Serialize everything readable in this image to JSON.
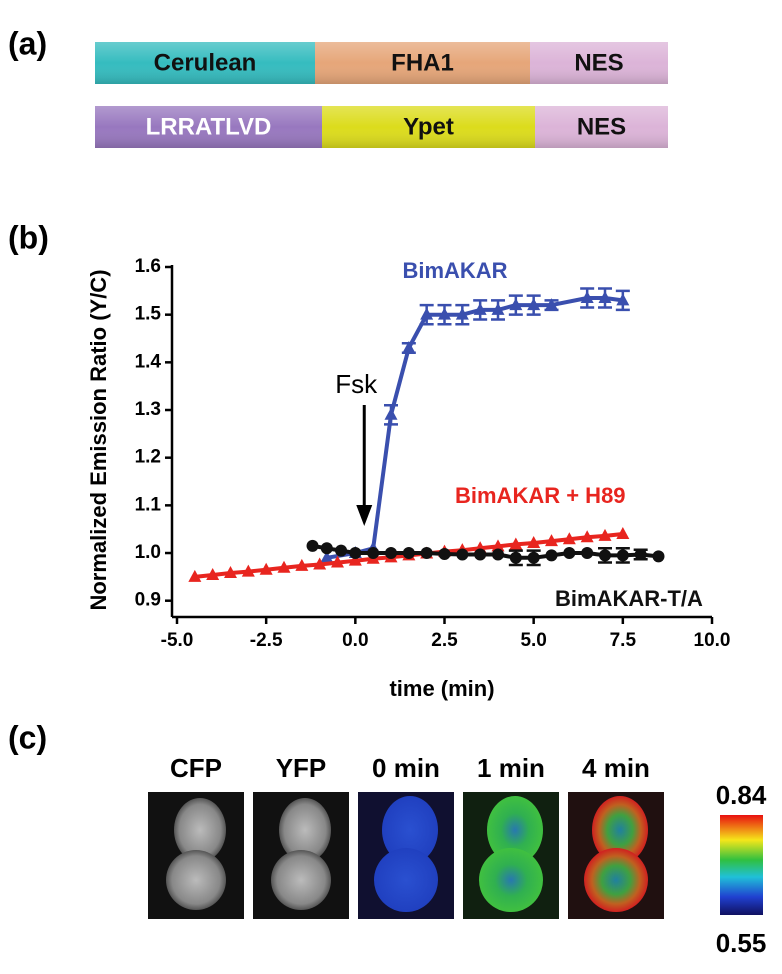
{
  "panel_a": {
    "label": "(a)",
    "rows": [
      [
        {
          "label": "Cerulean",
          "color": "#35bcbf"
        },
        {
          "label": "FHA1",
          "color": "#e6a679"
        },
        {
          "label": "NES",
          "color": "#dcb4d8"
        }
      ],
      [
        {
          "label": "LRRATLVD",
          "color": "#9878bf"
        },
        {
          "label": "Ypet",
          "color": "#dcdc1c"
        },
        {
          "label": "NES",
          "color": "#dcb4d8"
        }
      ]
    ]
  },
  "panel_b": {
    "label": "(b)"
  },
  "chart_data": {
    "type": "line",
    "x_label": "time (min)",
    "y_label": "Normalized  Emission Ratio (Y/C)",
    "xlim": [
      -5,
      10
    ],
    "xticks": [
      {
        "value": -5,
        "label": "-5.0"
      },
      {
        "value": -2.5,
        "label": "-2.5"
      },
      {
        "value": 0,
        "label": "0.0"
      },
      {
        "value": 2.5,
        "label": "2.5"
      },
      {
        "value": 5,
        "label": "5.0"
      },
      {
        "value": 7.5,
        "label": "7.5"
      },
      {
        "value": 10,
        "label": "10.0"
      }
    ],
    "ylim": [
      0.87,
      1.6
    ],
    "yticks": [
      0.9,
      {
        "value": 1,
        "label": "1.0"
      },
      1.1,
      1.2,
      1.3,
      1.4,
      1.5,
      1.6
    ],
    "annotations": [
      {
        "text": "Fsk",
        "x": 0.25
      }
    ],
    "series": [
      {
        "name": "BimAKAR",
        "color": "#3a4fae",
        "marker": "triangle",
        "x": [
          -0.8,
          0,
          0.5,
          1.0,
          1.5,
          2.0,
          2.5,
          3.0,
          3.5,
          4.0,
          4.5,
          5.0,
          5.5,
          6.5,
          7.0,
          7.5
        ],
        "values": [
          0.99,
          1.0,
          1.01,
          1.29,
          1.43,
          1.5,
          1.5,
          1.5,
          1.51,
          1.51,
          1.52,
          1.52,
          1.52,
          1.535,
          1.535,
          1.53
        ],
        "errors": [
          null,
          null,
          null,
          0.02,
          0.01,
          0.02,
          0.02,
          0.02,
          0.02,
          0.02,
          0.02,
          0.02,
          0.01,
          0.02,
          0.02,
          0.02
        ]
      },
      {
        "name": "BimAKAR + H89",
        "color": "#e8251f",
        "marker": "triangle",
        "x": [
          -4.5,
          -4.0,
          -3.5,
          -3.0,
          -2.5,
          -2.0,
          -1.5,
          -1.0,
          -0.5,
          0,
          0.5,
          1.0,
          1.5,
          2.0,
          2.5,
          3.0,
          3.5,
          4.0,
          4.5,
          5.0,
          5.5,
          6.0,
          6.5,
          7.0,
          7.5
        ],
        "values": [
          0.95,
          0.954,
          0.958,
          0.961,
          0.965,
          0.969,
          0.973,
          0.976,
          0.98,
          0.984,
          0.988,
          0.991,
          0.995,
          0.999,
          1.003,
          1.006,
          1.01,
          1.014,
          1.018,
          1.021,
          1.025,
          1.029,
          1.033,
          1.036,
          1.04
        ]
      },
      {
        "name": "BimAKAR-T/A",
        "color": "#111111",
        "marker": "circle",
        "x": [
          -1.2,
          -0.8,
          -0.4,
          0,
          0.5,
          1.0,
          1.5,
          2.0,
          2.5,
          3.0,
          3.5,
          4.0,
          4.5,
          5.0,
          5.5,
          6.0,
          6.5,
          7.0,
          7.5,
          8.0,
          8.5
        ],
        "values": [
          1.015,
          1.01,
          1.005,
          1.0,
          1.0,
          1.0,
          1.0,
          1.0,
          0.998,
          0.997,
          0.997,
          0.997,
          0.99,
          0.99,
          0.995,
          1.0,
          1.0,
          0.995,
          0.995,
          0.997,
          0.993
        ],
        "errors": [
          null,
          null,
          null,
          null,
          null,
          null,
          null,
          null,
          null,
          null,
          null,
          null,
          0.015,
          0.015,
          null,
          null,
          null,
          0.015,
          0.015,
          0.01,
          null
        ]
      }
    ]
  },
  "panel_c": {
    "label": "(c)",
    "images": [
      "CFP",
      "YFP",
      "0 min",
      "1 min",
      "4 min"
    ],
    "colorbar": {
      "max": 0.84,
      "min": 0.55
    }
  }
}
